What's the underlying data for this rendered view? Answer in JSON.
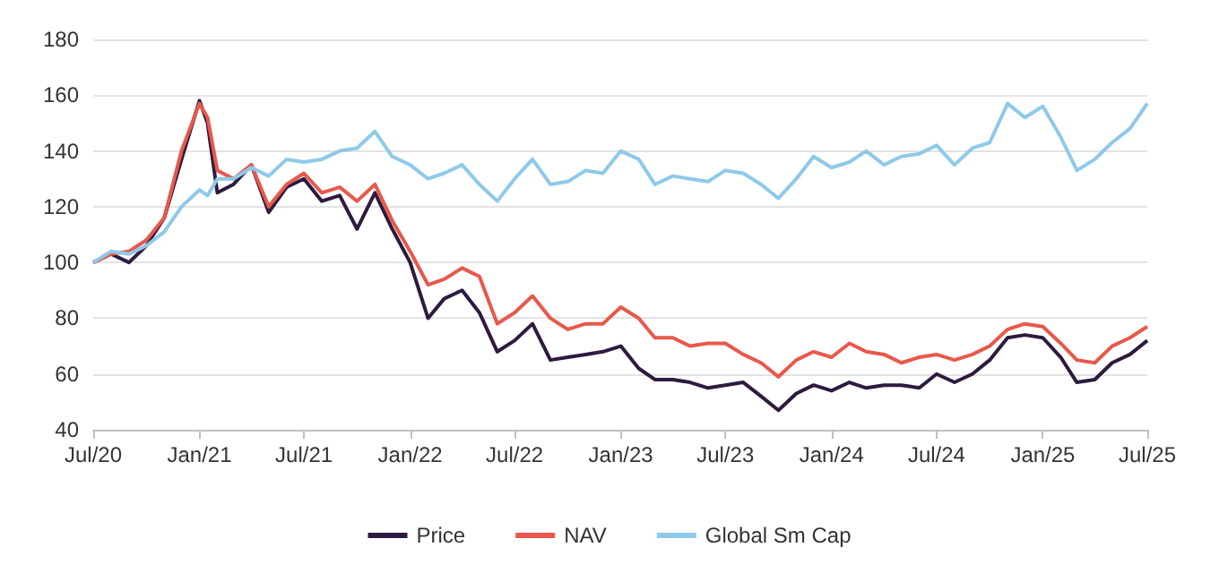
{
  "chart_data": {
    "type": "line",
    "x": [
      "2020-07",
      "2020-08",
      "2020-09",
      "2020-10",
      "2020-11",
      "2020-12",
      "2021-01",
      "2021-01-15",
      "2021-02",
      "2021-03",
      "2021-04",
      "2021-05",
      "2021-06",
      "2021-07",
      "2021-08",
      "2021-09",
      "2021-10",
      "2021-11",
      "2021-12",
      "2022-01",
      "2022-02",
      "2022-03",
      "2022-04",
      "2022-05",
      "2022-06",
      "2022-07",
      "2022-08",
      "2022-09",
      "2022-10",
      "2022-11",
      "2022-12",
      "2023-01",
      "2023-02",
      "2023-03",
      "2023-04",
      "2023-05",
      "2023-06",
      "2023-07",
      "2023-08",
      "2023-09",
      "2023-10",
      "2023-11",
      "2023-12",
      "2024-01",
      "2024-02",
      "2024-03",
      "2024-04",
      "2024-05",
      "2024-06",
      "2024-07",
      "2024-08",
      "2024-09",
      "2024-10",
      "2024-11",
      "2024-12",
      "2025-01",
      "2025-02",
      "2025-03",
      "2025-04",
      "2025-05",
      "2025-06",
      "2025-07"
    ],
    "series": [
      {
        "name": "Price",
        "color": "#2e1a3f",
        "values": [
          100,
          103,
          100,
          106,
          116,
          137,
          158,
          150,
          125,
          128,
          135,
          118,
          127,
          130,
          122,
          124,
          112,
          125,
          112,
          100,
          80,
          87,
          90,
          82,
          68,
          72,
          78,
          65,
          66,
          67,
          68,
          70,
          62,
          58,
          58,
          57,
          55,
          56,
          57,
          52,
          47,
          53,
          56,
          54,
          57,
          55,
          56,
          56,
          55,
          60,
          57,
          60,
          65,
          73,
          74,
          73,
          66,
          57,
          58,
          64,
          67,
          72
        ]
      },
      {
        "name": "NAV",
        "color": "#e8584a",
        "values": [
          100,
          103,
          104,
          108,
          116,
          140,
          157,
          152,
          133,
          130,
          135,
          120,
          128,
          132,
          125,
          127,
          122,
          128,
          115,
          104,
          92,
          94,
          98,
          95,
          78,
          82,
          88,
          80,
          76,
          78,
          78,
          84,
          80,
          73,
          73,
          70,
          71,
          71,
          67,
          64,
          59,
          65,
          68,
          66,
          71,
          68,
          67,
          64,
          66,
          67,
          65,
          67,
          70,
          76,
          78,
          77,
          71,
          65,
          64,
          70,
          73,
          77
        ]
      },
      {
        "name": "Global Sm Cap",
        "color": "#8ec9ea",
        "values": [
          100,
          104,
          103,
          106,
          111,
          120,
          126,
          124,
          130,
          130,
          134,
          131,
          137,
          136,
          137,
          140,
          141,
          147,
          138,
          135,
          130,
          132,
          135,
          128,
          122,
          130,
          137,
          128,
          129,
          133,
          132,
          140,
          137,
          128,
          131,
          130,
          129,
          133,
          132,
          128,
          123,
          130,
          138,
          134,
          136,
          140,
          135,
          138,
          139,
          142,
          135,
          141,
          143,
          157,
          152,
          156,
          145,
          133,
          137,
          143,
          148,
          157
        ]
      }
    ],
    "xlim": [
      "2020-07",
      "2025-07"
    ],
    "xticks": [
      {
        "value": "2020-07",
        "label": "Jul/20"
      },
      {
        "value": "2021-01",
        "label": "Jan/21"
      },
      {
        "value": "2021-07",
        "label": "Jul/21"
      },
      {
        "value": "2022-01",
        "label": "Jan/22"
      },
      {
        "value": "2022-07",
        "label": "Jul/22"
      },
      {
        "value": "2023-01",
        "label": "Jan/23"
      },
      {
        "value": "2023-07",
        "label": "Jul/23"
      },
      {
        "value": "2024-01",
        "label": "Jan/24"
      },
      {
        "value": "2024-07",
        "label": "Jul/24"
      },
      {
        "value": "2025-01",
        "label": "Jan/25"
      },
      {
        "value": "2025-07",
        "label": "Jul/25"
      }
    ],
    "ylim": [
      40,
      180
    ],
    "yticks": [
      40,
      60,
      80,
      100,
      120,
      140,
      160,
      180
    ],
    "grid": "y",
    "legend": "bottom",
    "marker": "none",
    "line_style": "solid"
  }
}
